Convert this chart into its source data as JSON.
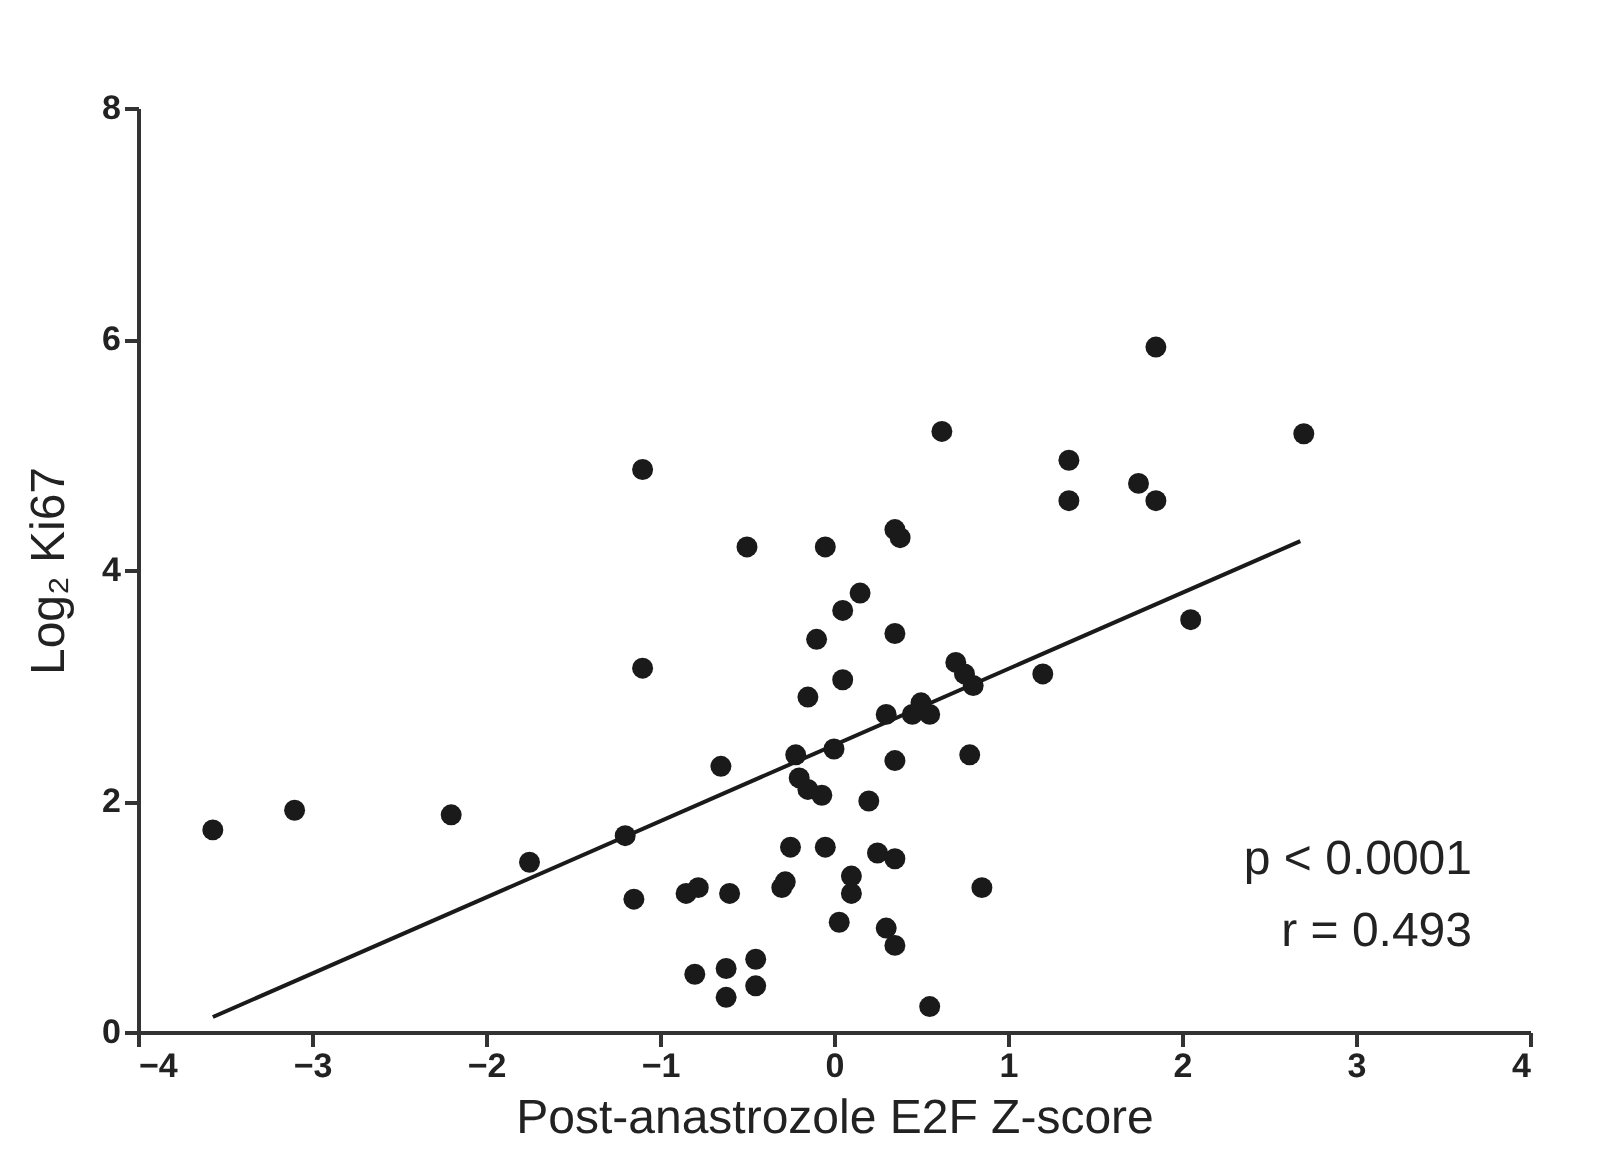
{
  "chart_data": {
    "type": "scatter",
    "xlabel": "Post-anastrozole E2F Z-score",
    "ylabel": "Log₂ Ki67",
    "xlim": [
      -4,
      4
    ],
    "xticks": [
      -4,
      -3,
      -2,
      -1,
      0,
      1,
      2,
      3,
      4
    ],
    "ylim": [
      0,
      8
    ],
    "yticks": [
      0,
      2,
      4,
      6,
      8
    ],
    "grid": false,
    "annotations": [
      "p < 0.0001",
      "r = 0.493"
    ],
    "series": [
      {
        "color": "#1a1a1a",
        "marker": "circle",
        "x": [
          -3.57,
          -3.1,
          -2.2,
          -1.75,
          -1.2,
          -1.15,
          -1.1,
          -1.1,
          -0.85,
          -0.78,
          -0.65,
          -0.6,
          -0.8,
          -0.62,
          -0.62,
          -0.45,
          -0.45,
          -0.5,
          -0.3,
          -0.28,
          -0.25,
          -0.2,
          -0.15,
          -0.22,
          -0.15,
          -0.1,
          -0.05,
          0.05,
          0.05,
          0.15,
          -0.05,
          0.1,
          0.1,
          0.03,
          -0.07,
          0.0,
          0.2,
          0.3,
          0.35,
          0.25,
          0.35,
          0.35,
          0.35,
          0.35,
          0.38,
          0.3,
          0.5,
          0.45,
          0.55,
          0.62,
          0.7,
          0.75,
          0.8,
          0.78,
          0.85,
          0.55,
          1.2,
          1.35,
          1.35,
          1.75,
          1.85,
          1.85,
          2.05,
          2.7
        ],
        "values": [
          1.75,
          1.92,
          1.88,
          1.47,
          1.7,
          1.15,
          4.87,
          3.15,
          1.2,
          1.25,
          2.3,
          1.2,
          0.5,
          0.55,
          0.3,
          0.4,
          0.63,
          4.2,
          1.25,
          1.3,
          1.6,
          2.2,
          2.1,
          2.4,
          2.9,
          3.4,
          4.2,
          3.05,
          3.65,
          3.8,
          1.6,
          1.2,
          1.35,
          0.95,
          2.05,
          2.45,
          2.0,
          0.9,
          0.75,
          1.55,
          1.5,
          2.35,
          3.45,
          4.35,
          4.28,
          2.75,
          2.85,
          2.75,
          2.75,
          5.2,
          3.2,
          3.1,
          3.0,
          2.4,
          1.25,
          0.22,
          3.1,
          4.95,
          4.6,
          4.75,
          4.6,
          5.93,
          3.57,
          5.18
        ]
      },
      {
        "type": "line",
        "color": "#1a1a1a",
        "line_style": "solid",
        "x": [
          -3.57,
          2.68
        ],
        "values": [
          0.13,
          4.25
        ]
      }
    ]
  }
}
